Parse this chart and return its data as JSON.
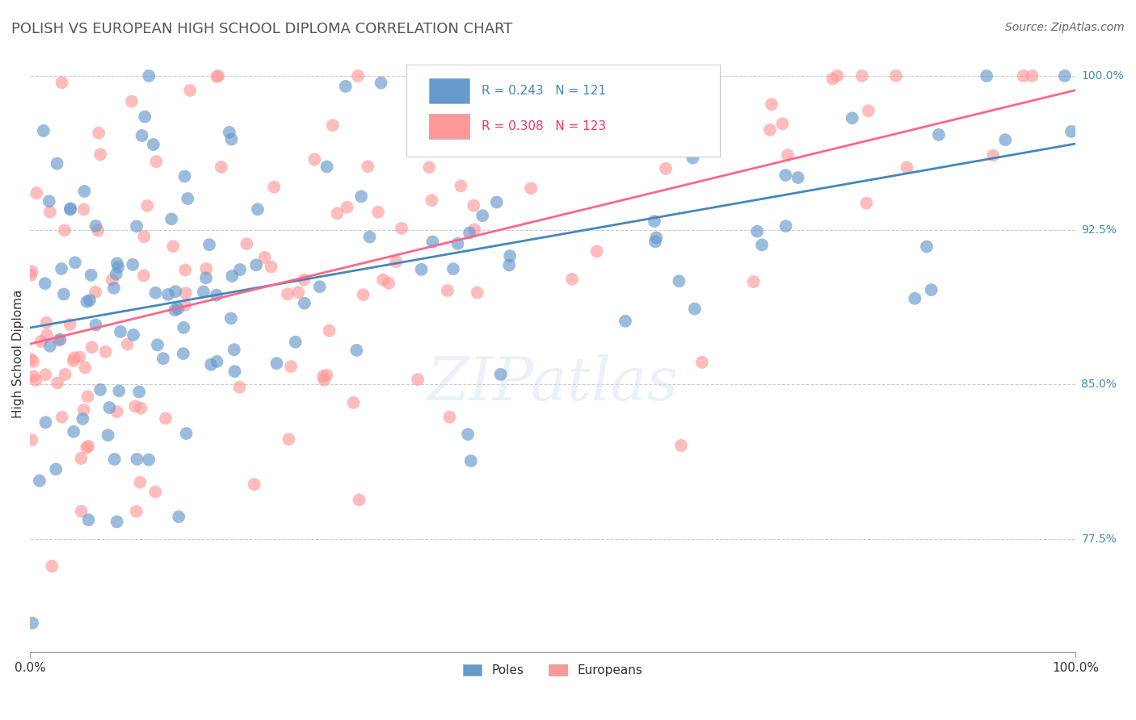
{
  "title": "POLISH VS EUROPEAN HIGH SCHOOL DIPLOMA CORRELATION CHART",
  "source": "Source: ZipAtlas.com",
  "ylabel": "High School Diploma",
  "legend_labels": [
    "Poles",
    "Europeans"
  ],
  "legend_r": [
    0.243,
    0.308
  ],
  "legend_n": [
    121,
    123
  ],
  "blue_color": "#6699CC",
  "pink_color": "#FF9999",
  "blue_line_color": "#4488BB",
  "pink_line_color": "#FF6688",
  "blue_text_color": "#4488BB",
  "pink_text_color": "#FF3366",
  "watermark_text": "ZIPatlas",
  "background_color": "#FFFFFF",
  "grid_color": "#CCCCCC",
  "xlim": [
    0.0,
    1.0
  ],
  "ylim": [
    0.72,
    1.01
  ],
  "y_tick_vals": [
    0.775,
    0.85,
    0.925,
    1.0
  ],
  "y_tick_labels": [
    "77.5%",
    "85.0%",
    "92.5%",
    "100.0%"
  ]
}
